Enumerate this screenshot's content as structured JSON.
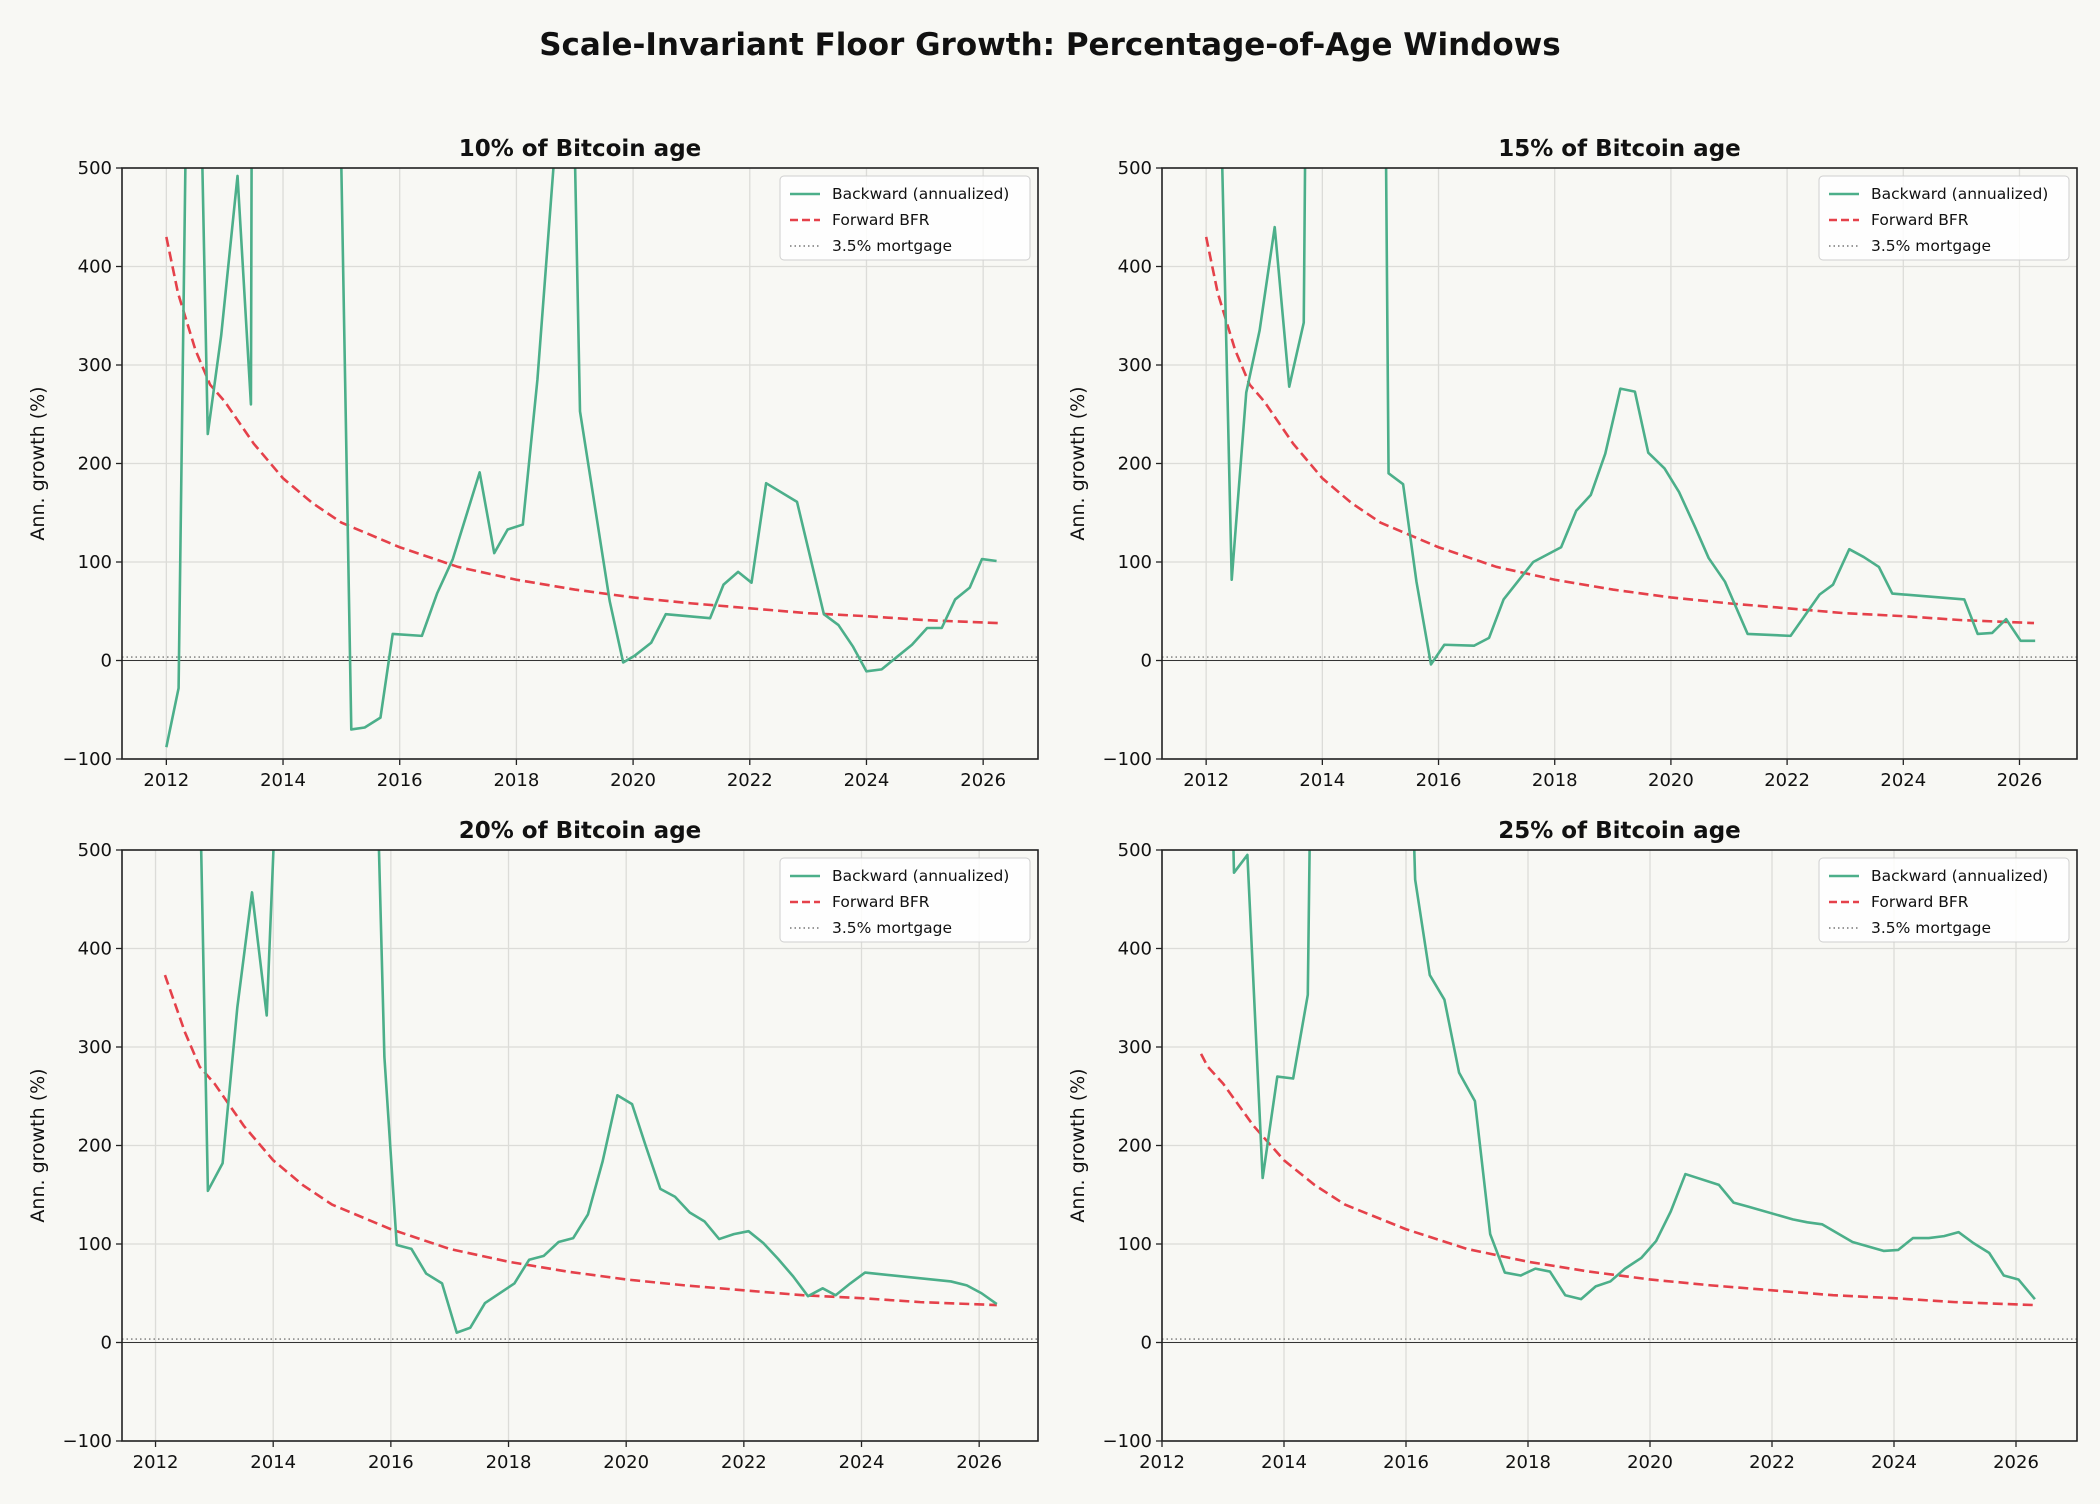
{
  "title": "Scale-Invariant Floor Growth: Percentage-of-Age Windows",
  "colors": {
    "backward": "#4caf8a",
    "forward": "#e5414a",
    "mortgage": "#777777",
    "zero": "#333333",
    "background": "#f8f8f4"
  },
  "legend": {
    "backward": "Backward (annualized)",
    "forward": "Forward BFR",
    "mortgage": "3.5% mortgage",
    "placement": "top-right"
  },
  "chart_data": [
    {
      "type": "line",
      "title": "10% of Bitcoin age",
      "ylabel": "Ann. growth (%)",
      "xlim": [
        2011.24,
        2026.94
      ],
      "ylim": [
        -100,
        500
      ],
      "xticks": [
        "2012",
        "2014",
        "2016",
        "2018",
        "2020",
        "2022",
        "2024",
        "2026"
      ],
      "yticks": [
        "−100",
        "0",
        "100",
        "200",
        "300",
        "400",
        "500"
      ],
      "grid": true,
      "mortgage": 3.5,
      "series": [
        {
          "name": "Backward (annualized)",
          "x": [
            2012.0,
            2012.21,
            2012.37,
            2012.55,
            2012.71,
            2012.94,
            2013.22,
            2013.45,
            2013.47,
            2014.94,
            2015.17,
            2015.4,
            2015.67,
            2015.88,
            2016.38,
            2016.64,
            2016.91,
            2017.37,
            2017.62,
            2017.85,
            2018.11,
            2018.36,
            2018.66,
            2019.0,
            2019.09,
            2019.6,
            2019.83,
            2020.03,
            2020.31,
            2020.56,
            2021.32,
            2021.55,
            2021.8,
            2022.03,
            2022.28,
            2022.81,
            2023.27,
            2023.52,
            2023.77,
            2024.0,
            2024.26,
            2024.53,
            2024.78,
            2025.04,
            2025.29,
            2025.52,
            2025.77,
            2025.98,
            2026.23
          ],
          "y": [
            -88,
            -28,
            700,
            700,
            230,
            330,
            492,
            260,
            700,
            700,
            -70,
            -68,
            -58,
            27,
            25,
            68,
            103,
            191,
            109,
            133,
            138,
            285,
            520,
            520,
            253,
            60,
            -2,
            5,
            18,
            47,
            43,
            77,
            90,
            79,
            180,
            161,
            47,
            36,
            14,
            -11,
            -9,
            4,
            16,
            33,
            33,
            62,
            74,
            103,
            101
          ]
        },
        {
          "name": "Forward BFR",
          "x": [
            2012.0,
            2012.2,
            2012.5,
            2012.75,
            2013.0,
            2013.5,
            2014.0,
            2014.5,
            2015.0,
            2016.0,
            2017.0,
            2018.0,
            2019.0,
            2020.0,
            2021.0,
            2022.0,
            2023.0,
            2024.0,
            2025.0,
            2026.25
          ],
          "y": [
            430,
            373,
            315,
            280,
            263,
            220,
            185,
            160,
            140,
            115,
            95,
            82,
            72,
            64,
            58,
            53,
            48,
            45,
            41,
            38
          ]
        }
      ]
    },
    {
      "type": "line",
      "title": "15% of Bitcoin age",
      "ylabel": "Ann. growth (%)",
      "xlim": [
        2011.24,
        2026.99
      ],
      "ylim": [
        -100,
        500
      ],
      "xticks": [
        "2012",
        "2014",
        "2016",
        "2018",
        "2020",
        "2022",
        "2024",
        "2026"
      ],
      "yticks": [
        "−100",
        "0",
        "100",
        "200",
        "300",
        "400",
        "500"
      ],
      "grid": true,
      "mortgage": 3.5,
      "series": [
        {
          "name": "Backward (annualized)",
          "x": [
            2012.2,
            2012.44,
            2012.69,
            2012.92,
            2013.18,
            2013.43,
            2013.68,
            2013.73,
            2015.07,
            2015.14,
            2015.39,
            2015.62,
            2015.87,
            2016.1,
            2016.61,
            2016.87,
            2017.12,
            2017.63,
            2018.11,
            2018.37,
            2018.62,
            2018.87,
            2019.13,
            2019.38,
            2019.61,
            2019.89,
            2020.14,
            2020.42,
            2020.65,
            2020.93,
            2021.32,
            2022.06,
            2022.56,
            2022.79,
            2023.07,
            2023.32,
            2023.58,
            2023.81,
            2025.05,
            2025.28,
            2025.53,
            2025.77,
            2026.02,
            2026.27
          ],
          "y": [
            700,
            82,
            272,
            335,
            440,
            278,
            343,
            700,
            700,
            190,
            179,
            80,
            -4,
            16,
            15,
            23,
            62,
            100,
            115,
            152,
            168,
            210,
            276,
            273,
            211,
            195,
            171,
            135,
            104,
            80,
            27,
            25,
            67,
            77,
            113,
            105,
            95,
            68,
            62,
            27,
            28,
            42,
            20,
            20
          ]
        },
        {
          "name": "Forward BFR",
          "x": [
            2012.0,
            2012.2,
            2012.5,
            2012.75,
            2013.0,
            2013.5,
            2014.0,
            2014.5,
            2015.0,
            2016.0,
            2017.0,
            2018.0,
            2019.0,
            2020.0,
            2021.0,
            2022.0,
            2023.0,
            2024.0,
            2025.0,
            2026.25
          ],
          "y": [
            430,
            373,
            315,
            280,
            263,
            220,
            185,
            160,
            140,
            115,
            95,
            82,
            72,
            64,
            58,
            53,
            48,
            45,
            41,
            38
          ]
        }
      ]
    },
    {
      "type": "line",
      "title": "20% of Bitcoin age",
      "ylabel": "Ann. growth (%)",
      "xlim": [
        2011.43,
        2027.0
      ],
      "ylim": [
        -100,
        500
      ],
      "xticks": [
        "2012",
        "2014",
        "2016",
        "2018",
        "2020",
        "2022",
        "2024",
        "2026"
      ],
      "yticks": [
        "−100",
        "0",
        "100",
        "200",
        "300",
        "400",
        "500"
      ],
      "grid": true,
      "mortgage": 3.5,
      "series": [
        {
          "name": "Backward (annualized)",
          "x": [
            2012.71,
            2012.89,
            2013.14,
            2013.39,
            2013.64,
            2013.89,
            2014.14,
            2015.71,
            2015.89,
            2016.1,
            2016.35,
            2016.6,
            2016.87,
            2017.12,
            2017.35,
            2017.6,
            2018.1,
            2018.35,
            2018.6,
            2018.85,
            2019.1,
            2019.35,
            2019.6,
            2019.85,
            2020.1,
            2020.33,
            2020.58,
            2020.83,
            2021.08,
            2021.33,
            2021.58,
            2021.83,
            2022.08,
            2022.33,
            2022.58,
            2022.84,
            2023.09,
            2023.34,
            2023.56,
            2023.81,
            2024.06,
            2025.52,
            2025.79,
            2026.04,
            2026.3
          ],
          "y": [
            700,
            154,
            182,
            340,
            457,
            332,
            700,
            700,
            290,
            99,
            95,
            70,
            60,
            10,
            15,
            40,
            60,
            84,
            88,
            102,
            106,
            130,
            184,
            251,
            242,
            200,
            156,
            148,
            132,
            123,
            105,
            110,
            113,
            101,
            85,
            67,
            47,
            55,
            48,
            60,
            71,
            62,
            58,
            50,
            39
          ]
        },
        {
          "name": "Forward BFR",
          "x": [
            2012.16,
            2012.5,
            2012.75,
            2013.0,
            2013.5,
            2014.0,
            2014.5,
            2015.0,
            2016.0,
            2017.0,
            2018.0,
            2019.0,
            2020.0,
            2021.0,
            2022.0,
            2023.0,
            2024.0,
            2025.0,
            2026.3
          ],
          "y": [
            373,
            315,
            280,
            263,
            220,
            185,
            160,
            140,
            115,
            95,
            82,
            72,
            64,
            58,
            53,
            48,
            45,
            41,
            38
          ]
        }
      ]
    },
    {
      "type": "line",
      "title": "25% of Bitcoin age",
      "ylabel": "Ann. growth (%)",
      "xlim": [
        2012.0,
        2027.0
      ],
      "ylim": [
        -100,
        500
      ],
      "xticks": [
        "2012",
        "2014",
        "2016",
        "2018",
        "2020",
        "2022",
        "2024",
        "2026"
      ],
      "yticks": [
        "−100",
        "0",
        "100",
        "200",
        "300",
        "400",
        "500"
      ],
      "grid": true,
      "mortgage": 3.5,
      "series": [
        {
          "name": "Backward (annualized)",
          "x": [
            2013.1,
            2013.18,
            2013.4,
            2013.65,
            2013.89,
            2014.15,
            2014.39,
            2014.46,
            2016.04,
            2016.15,
            2016.39,
            2016.63,
            2016.87,
            2017.13,
            2017.38,
            2017.62,
            2017.88,
            2018.12,
            2018.36,
            2018.61,
            2018.87,
            2019.11,
            2019.35,
            2019.59,
            2019.86,
            2020.1,
            2020.34,
            2020.58,
            2021.13,
            2021.37,
            2021.61,
            2022.34,
            2022.58,
            2022.82,
            2023.32,
            2023.83,
            2024.07,
            2024.31,
            2024.57,
            2024.82,
            2025.06,
            2025.3,
            2025.56,
            2025.8,
            2026.04,
            2026.31
          ],
          "y": [
            700,
            477,
            495,
            167,
            270,
            268,
            353,
            700,
            700,
            470,
            373,
            348,
            274,
            245,
            110,
            71,
            68,
            75,
            72,
            48,
            44,
            57,
            62,
            75,
            86,
            103,
            133,
            171,
            160,
            142,
            138,
            125,
            122,
            120,
            102,
            93,
            94,
            106,
            106,
            108,
            112,
            101,
            91,
            68,
            64,
            44
          ]
        },
        {
          "name": "Forward BFR",
          "x": [
            2012.64,
            2012.75,
            2013.0,
            2013.5,
            2014.0,
            2014.5,
            2015.0,
            2016.0,
            2017.0,
            2018.0,
            2019.0,
            2020.0,
            2021.0,
            2022.0,
            2023.0,
            2024.0,
            2025.0,
            2026.3
          ],
          "y": [
            293,
            280,
            263,
            220,
            185,
            160,
            140,
            115,
            95,
            82,
            72,
            64,
            58,
            53,
            48,
            45,
            41,
            38
          ]
        }
      ]
    }
  ]
}
